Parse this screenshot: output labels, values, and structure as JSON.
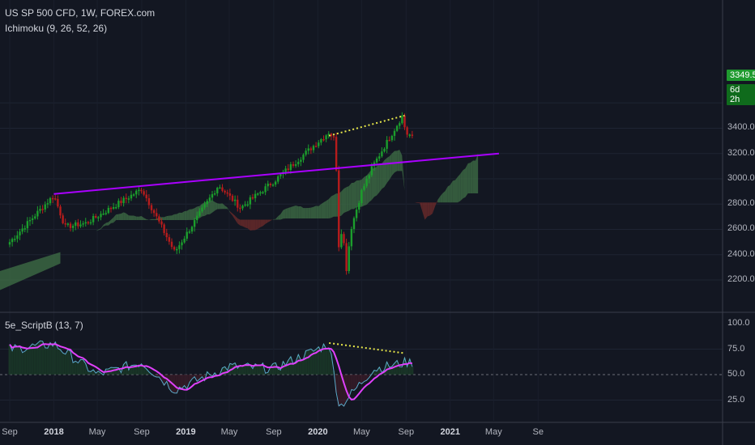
{
  "header": {
    "symbol_title": "US SP 500 CFD, 1W, FOREX.com",
    "indicator_title": "Ichimoku (9, 26, 52, 26)",
    "oscillator_title": "5e_ScriptB (13, 7)"
  },
  "price_badge": {
    "value": "3349.5",
    "countdown": "6d 2h"
  },
  "colors": {
    "background": "#131722",
    "candle_up": "#1b9e2c",
    "candle_down": "#b71c1c",
    "cloud_bull": "#3d6b45",
    "cloud_bear": "#6b2b2b",
    "trendline": "#aa00ff",
    "divergence": "#e8e84a",
    "signal": "#e040fb",
    "oscillator": "#5aa9c8",
    "badge": "#1f9a2f"
  },
  "chart_data": [
    {
      "type": "candlestick",
      "title": "US SP 500 CFD, 1W, FOREX.com",
      "y_ticks": [
        "2200.0",
        "2400.0",
        "2600.0",
        "2800.0",
        "3000.0",
        "3200.0",
        "3400.0",
        "3600.0"
      ],
      "ylim": [
        2080,
        3660
      ],
      "x_ticks": [
        "Sep",
        "2018",
        "May",
        "Sep",
        "2019",
        "May",
        "Sep",
        "2020",
        "May",
        "Sep",
        "2021",
        "May",
        "Se"
      ],
      "x_ticks_bold": [
        "2018",
        "2019",
        "2020",
        "2021"
      ],
      "weekly_close_approx": [
        {
          "date": "2017-09",
          "close": 2500
        },
        {
          "date": "2018-01",
          "close": 2870
        },
        {
          "date": "2018-02",
          "close": 2620
        },
        {
          "date": "2018-04",
          "close": 2650
        },
        {
          "date": "2018-09",
          "close": 2920
        },
        {
          "date": "2018-12",
          "close": 2420
        },
        {
          "date": "2019-04",
          "close": 2950
        },
        {
          "date": "2019-06",
          "close": 2770
        },
        {
          "date": "2019-09",
          "close": 2980
        },
        {
          "date": "2020-02",
          "close": 3370
        },
        {
          "date": "2020-03",
          "close": 2300
        },
        {
          "date": "2020-06",
          "close": 3100
        },
        {
          "date": "2020-09",
          "close": 3500
        },
        {
          "date": "2020-09",
          "close": 3350
        }
      ],
      "annotations": [
        {
          "kind": "trendline",
          "from": [
            "2018-01",
            2880
          ],
          "to": [
            "2021-04",
            3200
          ]
        },
        {
          "kind": "divergence",
          "from": [
            "2020-02",
            3340
          ],
          "to": [
            "2020-08",
            3500
          ]
        }
      ]
    },
    {
      "type": "line",
      "title": "5e_ScriptB (13, 7)",
      "y_ticks": [
        "25.0",
        "50.0",
        "75.0",
        "100.0"
      ],
      "ylim": [
        12,
        100
      ],
      "reference_line": 50,
      "series": [
        {
          "values_approx": [
            {
              "date": "2017-09",
              "value": 75
            },
            {
              "date": "2018-01",
              "value": 80
            },
            {
              "date": "2018-05",
              "value": 50
            },
            {
              "date": "2018-09",
              "value": 62
            },
            {
              "date": "2018-12",
              "value": 35
            },
            {
              "date": "2019-05",
              "value": 58
            },
            {
              "date": "2019-09",
              "value": 56
            },
            {
              "date": "2020-02",
              "value": 80
            },
            {
              "date": "2020-03",
              "value": 18
            },
            {
              "date": "2020-06",
              "value": 55
            },
            {
              "date": "2020-09",
              "value": 62
            }
          ]
        }
      ],
      "annotations": [
        {
          "kind": "divergence",
          "from": [
            "2020-02",
            81
          ],
          "to": [
            "2020-08",
            71
          ]
        }
      ]
    }
  ]
}
